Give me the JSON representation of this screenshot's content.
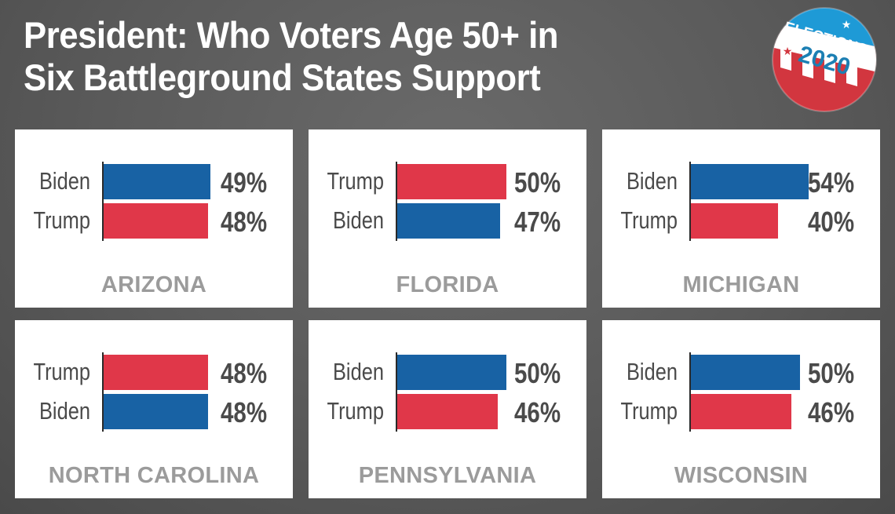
{
  "header": {
    "title_line1": "President: Who Voters Age 50+ in",
    "title_line2": "Six Battleground States Support"
  },
  "badge": {
    "top_text": "ELECTIONS",
    "year": "2020",
    "colors": {
      "blue": "#1e9ad6",
      "red": "#d2363f",
      "white": "#ffffff",
      "text_blue": "#1c7fb3"
    }
  },
  "colors": {
    "biden": "#1862a4",
    "trump": "#e03749",
    "label_text": "#4a4a4a",
    "state_text": "#9b9b9b"
  },
  "chart_data": {
    "type": "bar",
    "orientation": "horizontal",
    "title": "President: Who Voters Age 50+ in Six Battleground States Support",
    "unit": "%",
    "panels": [
      {
        "state": "ARIZONA",
        "bars": [
          {
            "candidate": "Biden",
            "value": 49,
            "label": "49%"
          },
          {
            "candidate": "Trump",
            "value": 48,
            "label": "48%"
          }
        ]
      },
      {
        "state": "FLORIDA",
        "bars": [
          {
            "candidate": "Trump",
            "value": 50,
            "label": "50%"
          },
          {
            "candidate": "Biden",
            "value": 47,
            "label": "47%"
          }
        ]
      },
      {
        "state": "MICHIGAN",
        "bars": [
          {
            "candidate": "Biden",
            "value": 54,
            "label": "54%"
          },
          {
            "candidate": "Trump",
            "value": 40,
            "label": "40%"
          }
        ]
      },
      {
        "state": "NORTH CAROLINA",
        "bars": [
          {
            "candidate": "Trump",
            "value": 48,
            "label": "48%"
          },
          {
            "candidate": "Biden",
            "value": 48,
            "label": "48%"
          }
        ]
      },
      {
        "state": "PENNSYLVANIA",
        "bars": [
          {
            "candidate": "Biden",
            "value": 50,
            "label": "50%"
          },
          {
            "candidate": "Trump",
            "value": 46,
            "label": "46%"
          }
        ]
      },
      {
        "state": "WISCONSIN",
        "bars": [
          {
            "candidate": "Biden",
            "value": 50,
            "label": "50%"
          },
          {
            "candidate": "Trump",
            "value": 46,
            "label": "46%"
          }
        ]
      }
    ],
    "xlim": [
      0,
      100
    ],
    "grid": false,
    "legend": "none"
  }
}
